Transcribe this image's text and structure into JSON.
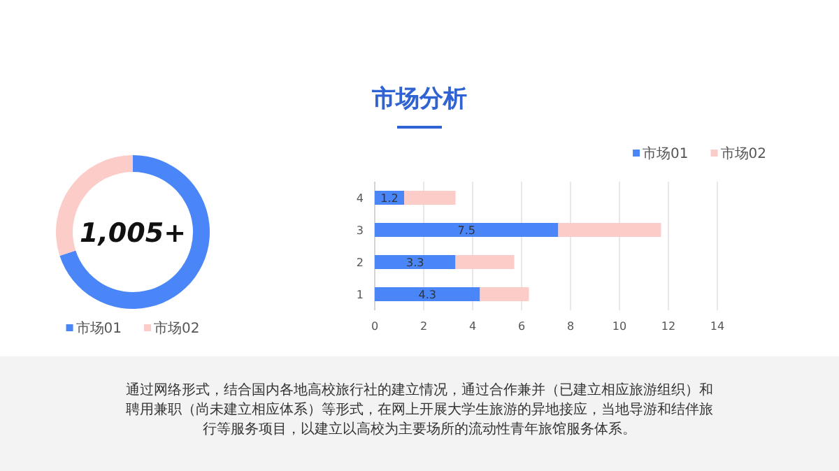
{
  "chart_data": [
    {
      "type": "other",
      "title": "市场分析",
      "annotations": [
        "通过网络形式，结合国内各地高校旅行社的建立情况，通过合作兼并（已建立相应旅游组织）和聘用兼职（尚未建立相应体系）等形式，在网上开展大学生旅游的异地接应，当地导游和结伴旅行等服务项目，以建立以高校为主要场所的流动性青年旅馆服务体系。"
      ]
    },
    {
      "type": "donut",
      "categories": [
        "市场01",
        "市场02"
      ],
      "values": [
        70,
        30
      ],
      "colors": [
        "#4a86f7",
        "#fcccc8"
      ],
      "annotations": [
        "1,005+"
      ],
      "legend": "bottom"
    },
    {
      "type": "bar",
      "orientation": "horizontal",
      "stacked": true,
      "categories": [
        "4",
        "3",
        "2",
        "1"
      ],
      "series": [
        {
          "name": "市场01",
          "color": "#4a86f7",
          "values": [
            1.2,
            7.5,
            3.3,
            4.3
          ],
          "value_labels": [
            "1.2",
            "7.5",
            "3.3",
            "4.3"
          ]
        },
        {
          "name": "市场02",
          "color": "#fcccc8",
          "values": [
            2.1,
            4.2,
            2.4,
            2.0
          ]
        }
      ],
      "xlim": [
        0,
        14
      ],
      "xticks": [
        0,
        2,
        4,
        6,
        8,
        10,
        12,
        14
      ],
      "grid": "x",
      "legend": "top right"
    }
  ]
}
